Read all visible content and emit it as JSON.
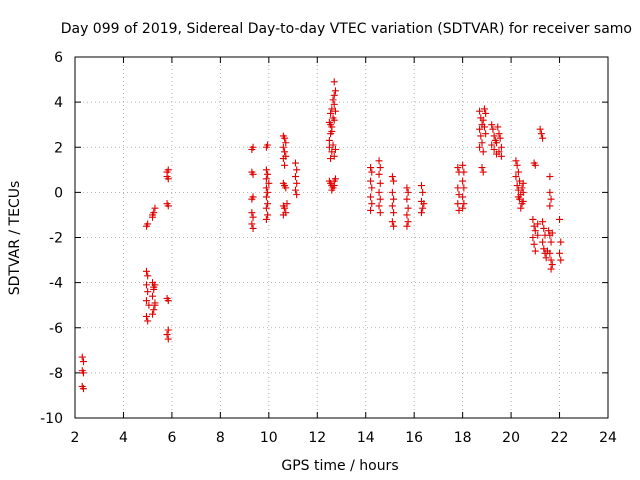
{
  "chart_data": {
    "type": "scatter",
    "title": "Day 099 of 2019, Sidereal Day-to-day VTEC variation (SDTVAR) for receiver samo",
    "xlabel": "GPS time / hours",
    "ylabel": "SDTVAR / TECUs",
    "xlim": [
      2,
      24
    ],
    "ylim": [
      -10,
      6
    ],
    "xticks": [
      2,
      4,
      6,
      8,
      10,
      12,
      14,
      16,
      18,
      20,
      22,
      24
    ],
    "yticks": [
      -10,
      -8,
      -6,
      -4,
      -2,
      0,
      2,
      4,
      6
    ],
    "grid": true,
    "marker": "plus",
    "color": "#e00000",
    "series": [
      {
        "name": "SDTVAR",
        "points": [
          [
            2.3,
            -7.3
          ],
          [
            2.35,
            -7.5
          ],
          [
            2.3,
            -7.9
          ],
          [
            2.35,
            -8.0
          ],
          [
            2.3,
            -8.6
          ],
          [
            2.35,
            -8.7
          ],
          [
            4.95,
            -1.5
          ],
          [
            5.0,
            -1.4
          ],
          [
            5.2,
            -1.1
          ],
          [
            5.25,
            -0.9
          ],
          [
            5.3,
            -0.7
          ],
          [
            5.2,
            -1.0
          ],
          [
            4.95,
            -3.5
          ],
          [
            5.0,
            -3.7
          ],
          [
            4.95,
            -4.1
          ],
          [
            5.0,
            -4.4
          ],
          [
            4.95,
            -4.8
          ],
          [
            5.05,
            -5.0
          ],
          [
            4.95,
            -5.5
          ],
          [
            5.0,
            -5.7
          ],
          [
            5.2,
            -4.0
          ],
          [
            5.3,
            -4.1
          ],
          [
            5.25,
            -4.3
          ],
          [
            5.2,
            -4.6
          ],
          [
            5.3,
            -4.9
          ],
          [
            5.25,
            -5.2
          ],
          [
            5.2,
            -5.4
          ],
          [
            5.3,
            -5.0
          ],
          [
            5.25,
            -4.2
          ],
          [
            5.8,
            0.9
          ],
          [
            5.85,
            1.0
          ],
          [
            5.8,
            0.7
          ],
          [
            5.85,
            0.6
          ],
          [
            5.8,
            -0.5
          ],
          [
            5.85,
            -0.6
          ],
          [
            5.8,
            -4.7
          ],
          [
            5.85,
            -4.8
          ],
          [
            5.85,
            -6.1
          ],
          [
            5.8,
            -6.3
          ],
          [
            5.85,
            -6.5
          ],
          [
            9.3,
            1.9
          ],
          [
            9.35,
            2.0
          ],
          [
            9.3,
            0.9
          ],
          [
            9.35,
            0.8
          ],
          [
            9.3,
            -0.3
          ],
          [
            9.35,
            -0.2
          ],
          [
            9.3,
            -0.9
          ],
          [
            9.35,
            -1.1
          ],
          [
            9.3,
            -1.4
          ],
          [
            9.35,
            -1.6
          ],
          [
            9.9,
            2.0
          ],
          [
            9.95,
            2.1
          ],
          [
            9.9,
            1.0
          ],
          [
            9.95,
            0.8
          ],
          [
            9.9,
            0.6
          ],
          [
            9.9,
            0.2
          ],
          [
            9.95,
            0.0
          ],
          [
            9.9,
            -0.2
          ],
          [
            9.95,
            -0.5
          ],
          [
            9.9,
            -0.7
          ],
          [
            9.95,
            -1.0
          ],
          [
            9.9,
            -1.2
          ],
          [
            10.0,
            0.4
          ],
          [
            10.6,
            2.5
          ],
          [
            10.65,
            2.4
          ],
          [
            10.7,
            2.2
          ],
          [
            10.6,
            2.0
          ],
          [
            10.65,
            1.8
          ],
          [
            10.7,
            1.6
          ],
          [
            10.6,
            1.5
          ],
          [
            10.65,
            1.2
          ],
          [
            10.6,
            0.4
          ],
          [
            10.65,
            0.3
          ],
          [
            10.7,
            0.2
          ],
          [
            10.6,
            -0.6
          ],
          [
            10.65,
            -0.7
          ],
          [
            10.7,
            -0.9
          ],
          [
            10.6,
            -1.0
          ],
          [
            10.75,
            -0.5
          ],
          [
            11.1,
            1.3
          ],
          [
            11.15,
            1.0
          ],
          [
            11.1,
            0.7
          ],
          [
            11.15,
            0.4
          ],
          [
            11.1,
            0.1
          ],
          [
            11.15,
            -0.1
          ],
          [
            12.5,
            2.3
          ],
          [
            12.55,
            2.6
          ],
          [
            12.6,
            2.9
          ],
          [
            12.5,
            3.1
          ],
          [
            12.65,
            3.3
          ],
          [
            12.55,
            3.5
          ],
          [
            12.6,
            3.7
          ],
          [
            12.7,
            3.9
          ],
          [
            12.65,
            4.1
          ],
          [
            12.7,
            4.3
          ],
          [
            12.75,
            4.5
          ],
          [
            12.7,
            4.9
          ],
          [
            12.55,
            3.0
          ],
          [
            12.6,
            2.7
          ],
          [
            12.7,
            3.2
          ],
          [
            12.75,
            3.6
          ],
          [
            12.5,
            2.0
          ],
          [
            12.6,
            1.8
          ],
          [
            12.7,
            1.6
          ],
          [
            12.55,
            1.5
          ],
          [
            12.75,
            1.9
          ],
          [
            12.65,
            2.1
          ],
          [
            12.5,
            0.5
          ],
          [
            12.55,
            0.4
          ],
          [
            12.6,
            0.3
          ],
          [
            12.65,
            0.2
          ],
          [
            12.7,
            0.5
          ],
          [
            12.75,
            0.6
          ],
          [
            12.6,
            0.1
          ],
          [
            12.7,
            0.3
          ],
          [
            14.2,
            1.1
          ],
          [
            14.25,
            0.9
          ],
          [
            14.2,
            0.5
          ],
          [
            14.25,
            0.2
          ],
          [
            14.2,
            -0.2
          ],
          [
            14.25,
            -0.5
          ],
          [
            14.2,
            -0.8
          ],
          [
            14.55,
            1.4
          ],
          [
            14.6,
            1.1
          ],
          [
            14.55,
            0.8
          ],
          [
            14.6,
            0.4
          ],
          [
            14.55,
            0.0
          ],
          [
            14.6,
            -0.3
          ],
          [
            14.55,
            -0.6
          ],
          [
            14.6,
            -0.9
          ],
          [
            15.1,
            0.7
          ],
          [
            15.15,
            0.5
          ],
          [
            15.1,
            0.0
          ],
          [
            15.15,
            -0.3
          ],
          [
            15.1,
            -0.6
          ],
          [
            15.15,
            -0.9
          ],
          [
            15.1,
            -1.3
          ],
          [
            15.15,
            -1.5
          ],
          [
            15.7,
            0.2
          ],
          [
            15.75,
            0.0
          ],
          [
            15.7,
            -0.3
          ],
          [
            15.75,
            -0.7
          ],
          [
            15.7,
            -1.0
          ],
          [
            15.75,
            -1.3
          ],
          [
            15.7,
            -1.5
          ],
          [
            16.3,
            0.3
          ],
          [
            16.35,
            0.0
          ],
          [
            16.3,
            -0.4
          ],
          [
            16.35,
            -0.7
          ],
          [
            16.3,
            -0.9
          ],
          [
            16.4,
            -0.5
          ],
          [
            17.8,
            1.1
          ],
          [
            17.85,
            0.9
          ],
          [
            17.8,
            0.2
          ],
          [
            17.85,
            -0.1
          ],
          [
            17.8,
            -0.5
          ],
          [
            17.85,
            -0.8
          ],
          [
            18.0,
            1.2
          ],
          [
            18.05,
            0.9
          ],
          [
            18.0,
            0.5
          ],
          [
            18.05,
            0.2
          ],
          [
            18.0,
            -0.2
          ],
          [
            18.05,
            -0.5
          ],
          [
            18.0,
            -0.7
          ],
          [
            18.7,
            3.6
          ],
          [
            18.75,
            3.3
          ],
          [
            18.8,
            3.0
          ],
          [
            18.7,
            2.8
          ],
          [
            18.75,
            2.5
          ],
          [
            18.8,
            2.2
          ],
          [
            18.7,
            2.0
          ],
          [
            18.85,
            1.8
          ],
          [
            18.9,
            3.7
          ],
          [
            18.95,
            3.5
          ],
          [
            18.85,
            3.2
          ],
          [
            18.9,
            2.9
          ],
          [
            18.95,
            2.6
          ],
          [
            18.8,
            1.1
          ],
          [
            18.85,
            0.9
          ],
          [
            19.2,
            3.0
          ],
          [
            19.25,
            2.8
          ],
          [
            19.3,
            2.5
          ],
          [
            19.35,
            2.3
          ],
          [
            19.2,
            2.1
          ],
          [
            19.3,
            1.9
          ],
          [
            19.4,
            1.7
          ],
          [
            19.45,
            2.9
          ],
          [
            19.5,
            2.6
          ],
          [
            19.4,
            2.2
          ],
          [
            19.5,
            1.8
          ],
          [
            19.6,
            2.0
          ],
          [
            19.55,
            2.4
          ],
          [
            19.6,
            1.6
          ],
          [
            20.2,
            1.4
          ],
          [
            20.25,
            1.2
          ],
          [
            20.3,
            0.9
          ],
          [
            20.2,
            0.7
          ],
          [
            20.35,
            0.5
          ],
          [
            20.25,
            0.3
          ],
          [
            20.3,
            0.1
          ],
          [
            20.4,
            -0.1
          ],
          [
            20.35,
            -0.3
          ],
          [
            20.45,
            -0.5
          ],
          [
            20.4,
            -0.7
          ],
          [
            20.5,
            -0.4
          ],
          [
            20.45,
            0.2
          ],
          [
            20.5,
            0.4
          ],
          [
            20.3,
            -0.2
          ],
          [
            20.5,
            0.0
          ],
          [
            20.95,
            1.3
          ],
          [
            21.0,
            1.2
          ],
          [
            20.9,
            -1.2
          ],
          [
            20.95,
            -1.5
          ],
          [
            21.0,
            -1.7
          ],
          [
            20.9,
            -2.0
          ],
          [
            20.95,
            -2.3
          ],
          [
            21.0,
            -2.6
          ],
          [
            21.1,
            -1.4
          ],
          [
            21.1,
            -1.9
          ],
          [
            21.2,
            2.8
          ],
          [
            21.25,
            2.6
          ],
          [
            21.3,
            2.4
          ],
          [
            21.3,
            -1.3
          ],
          [
            21.35,
            -1.6
          ],
          [
            21.4,
            -1.9
          ],
          [
            21.3,
            -2.2
          ],
          [
            21.35,
            -2.5
          ],
          [
            21.4,
            -2.7
          ],
          [
            21.45,
            -2.9
          ],
          [
            21.5,
            -2.6
          ],
          [
            21.6,
            0.7
          ],
          [
            21.6,
            0.0
          ],
          [
            21.65,
            -0.3
          ],
          [
            21.6,
            -0.6
          ],
          [
            21.55,
            -1.7
          ],
          [
            21.6,
            -1.9
          ],
          [
            21.65,
            -2.2
          ],
          [
            21.6,
            -2.7
          ],
          [
            21.65,
            -3.0
          ],
          [
            21.7,
            -3.2
          ],
          [
            21.65,
            -3.4
          ],
          [
            21.7,
            -1.8
          ],
          [
            22.0,
            -1.2
          ],
          [
            22.05,
            -2.2
          ],
          [
            22.0,
            -2.7
          ],
          [
            22.05,
            -3.0
          ]
        ]
      }
    ]
  }
}
